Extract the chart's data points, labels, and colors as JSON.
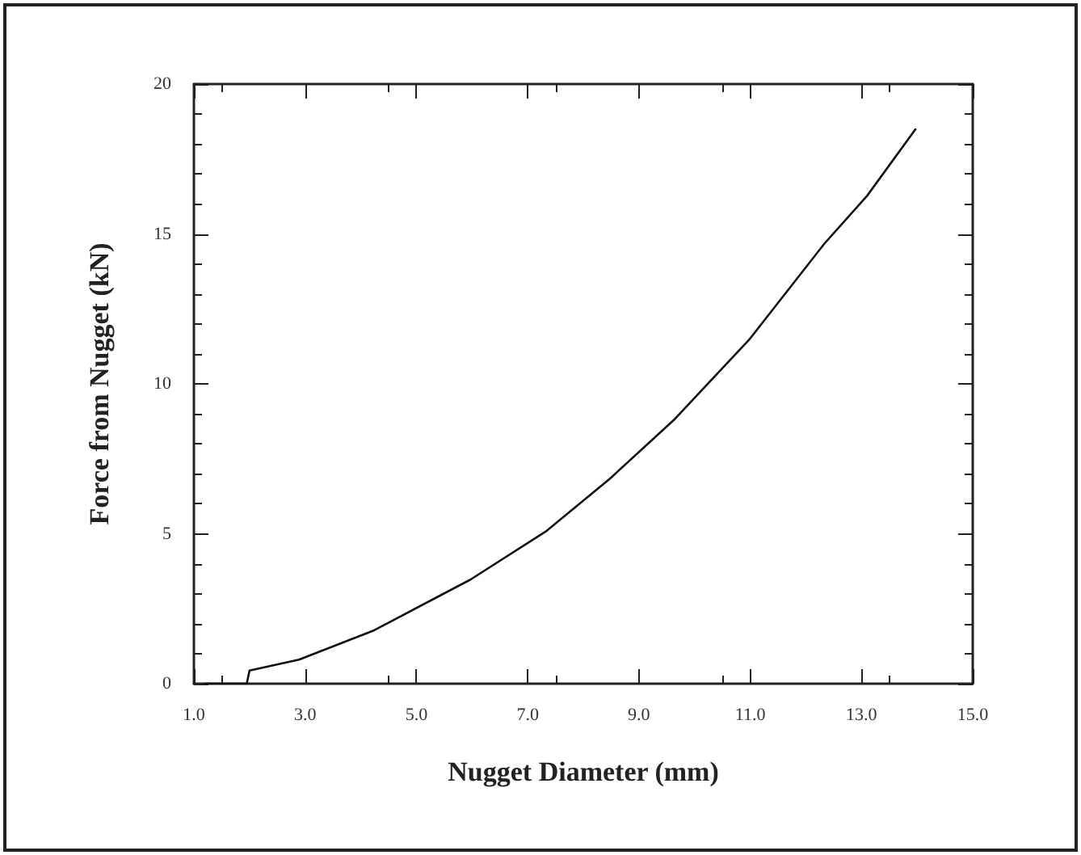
{
  "chart_data": {
    "type": "line",
    "xlabel": "Nugget Diameter (mm)",
    "ylabel": "Force from Nugget (kN)",
    "x": [
      1.2,
      1.95,
      2.0,
      2.89,
      4.24,
      5.97,
      7.32,
      8.48,
      9.63,
      10.98,
      12.33,
      13.1,
      13.97
    ],
    "series": [
      {
        "color": "#111111",
        "values": [
          0,
          0,
          0.44,
          0.8,
          1.78,
          3.47,
          5.07,
          6.84,
          8.8,
          11.47,
          14.67,
          16.27,
          18.49
        ]
      }
    ],
    "xlim": [
      1,
      15
    ],
    "xticks": [
      {
        "value": 1,
        "label": "1.0"
      },
      {
        "value": 3,
        "label": "3.0"
      },
      {
        "value": 5,
        "label": "5.0"
      },
      {
        "value": 7,
        "label": "7.0"
      },
      {
        "value": 9,
        "label": "9.0"
      },
      {
        "value": 11,
        "label": "11.0"
      },
      {
        "value": 13,
        "label": "13.0"
      },
      {
        "value": 15,
        "label": "15.0"
      }
    ],
    "ylim": [
      0,
      20
    ],
    "yticks": [
      0,
      5,
      10,
      15,
      20
    ],
    "grid": false,
    "marker": "none",
    "line_style": "solid"
  }
}
